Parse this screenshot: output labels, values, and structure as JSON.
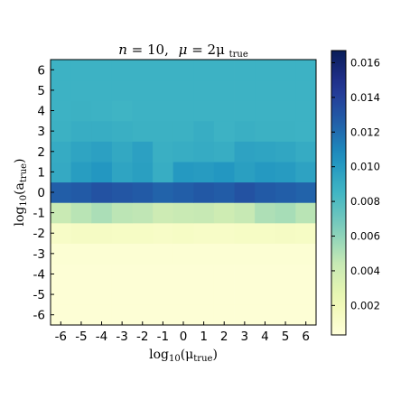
{
  "chart_data": {
    "type": "heatmap",
    "title": "n = 10,  μ = 2μ_true",
    "title_parts": {
      "n_label": "n",
      "n_value": "= 10,",
      "mu_label": "μ",
      "mu_rhs": "= 2μ",
      "mu_sub": "true"
    },
    "xlabel": "log10(μ_true)",
    "xlabel_parts": {
      "main": "log",
      "base": "10",
      "arg": "(μ",
      "sub": "true",
      "close": ")"
    },
    "ylabel": "log10(a_true)",
    "ylabel_parts": {
      "main": "log",
      "base": "10",
      "arg": "(a",
      "sub": "true",
      "close": ")"
    },
    "x": [
      -6,
      -5,
      -4,
      -3,
      -2,
      -1,
      0,
      1,
      2,
      3,
      4,
      5,
      6
    ],
    "y": [
      -6,
      -5,
      -4,
      -3,
      -2,
      -1,
      0,
      1,
      2,
      3,
      4,
      5,
      6
    ],
    "x_tick_labels": [
      "-6",
      "-5",
      "-4",
      "-3",
      "-2",
      "-1",
      "0",
      "1",
      "2",
      "3",
      "4",
      "5",
      "6"
    ],
    "y_tick_labels": [
      "-6",
      "-5",
      "-4",
      "-3",
      "-2",
      "-1",
      "0",
      "1",
      "2",
      "3",
      "4",
      "5",
      "6"
    ],
    "colormap": "YlGnBu",
    "colorbar": {
      "min": 0.0003,
      "max": 0.0167,
      "ticks": [
        0.002,
        0.004,
        0.006,
        0.008,
        0.01,
        0.012,
        0.014,
        0.016
      ],
      "tick_labels": [
        "0.002",
        "0.004",
        "0.006",
        "0.008",
        "0.010",
        "0.012",
        "0.014",
        "0.016"
      ]
    },
    "z": [
      [
        0.0005,
        0.0005,
        0.0005,
        0.0005,
        0.0005,
        0.0005,
        0.0005,
        0.0005,
        0.0005,
        0.0005,
        0.0005,
        0.0005,
        0.0005
      ],
      [
        0.0005,
        0.0005,
        0.0005,
        0.0005,
        0.0005,
        0.0005,
        0.0005,
        0.0005,
        0.0005,
        0.0005,
        0.0005,
        0.0005,
        0.0005
      ],
      [
        0.0005,
        0.0005,
        0.0005,
        0.0005,
        0.0005,
        0.0005,
        0.0005,
        0.0005,
        0.0005,
        0.0005,
        0.0005,
        0.0005,
        0.0005
      ],
      [
        0.0006,
        0.0006,
        0.0006,
        0.0006,
        0.0006,
        0.0006,
        0.0006,
        0.0006,
        0.0006,
        0.0006,
        0.0006,
        0.0006,
        0.0006
      ],
      [
        0.0012,
        0.0014,
        0.0014,
        0.0013,
        0.0013,
        0.0012,
        0.0013,
        0.0012,
        0.0012,
        0.0013,
        0.0013,
        0.0014,
        0.0013
      ],
      [
        0.0043,
        0.0048,
        0.0052,
        0.0047,
        0.0046,
        0.0041,
        0.0043,
        0.0044,
        0.004,
        0.0044,
        0.0051,
        0.0053,
        0.0048
      ],
      [
        0.0126,
        0.0128,
        0.0132,
        0.013,
        0.0128,
        0.0124,
        0.0126,
        0.0129,
        0.0127,
        0.0132,
        0.0128,
        0.0126,
        0.0124
      ],
      [
        0.0092,
        0.0099,
        0.0102,
        0.0095,
        0.0098,
        0.009,
        0.0101,
        0.01,
        0.0102,
        0.0098,
        0.0101,
        0.01,
        0.0096
      ],
      [
        0.0091,
        0.0095,
        0.0097,
        0.0093,
        0.0097,
        0.0089,
        0.009,
        0.0091,
        0.009,
        0.0096,
        0.0095,
        0.0094,
        0.0091
      ],
      [
        0.0088,
        0.009,
        0.009,
        0.0089,
        0.0088,
        0.0088,
        0.0088,
        0.009,
        0.0087,
        0.0089,
        0.0088,
        0.0088,
        0.0087
      ],
      [
        0.0087,
        0.0088,
        0.0087,
        0.0086,
        0.0087,
        0.0087,
        0.0087,
        0.0087,
        0.0087,
        0.0087,
        0.0087,
        0.0087,
        0.0087
      ],
      [
        0.0087,
        0.0087,
        0.0087,
        0.0087,
        0.0087,
        0.0087,
        0.0087,
        0.0087,
        0.0087,
        0.0087,
        0.0087,
        0.0087,
        0.0087
      ],
      [
        0.0087,
        0.0087,
        0.0087,
        0.0087,
        0.0087,
        0.0087,
        0.0087,
        0.0087,
        0.0087,
        0.0087,
        0.0087,
        0.0087,
        0.0087
      ]
    ]
  }
}
